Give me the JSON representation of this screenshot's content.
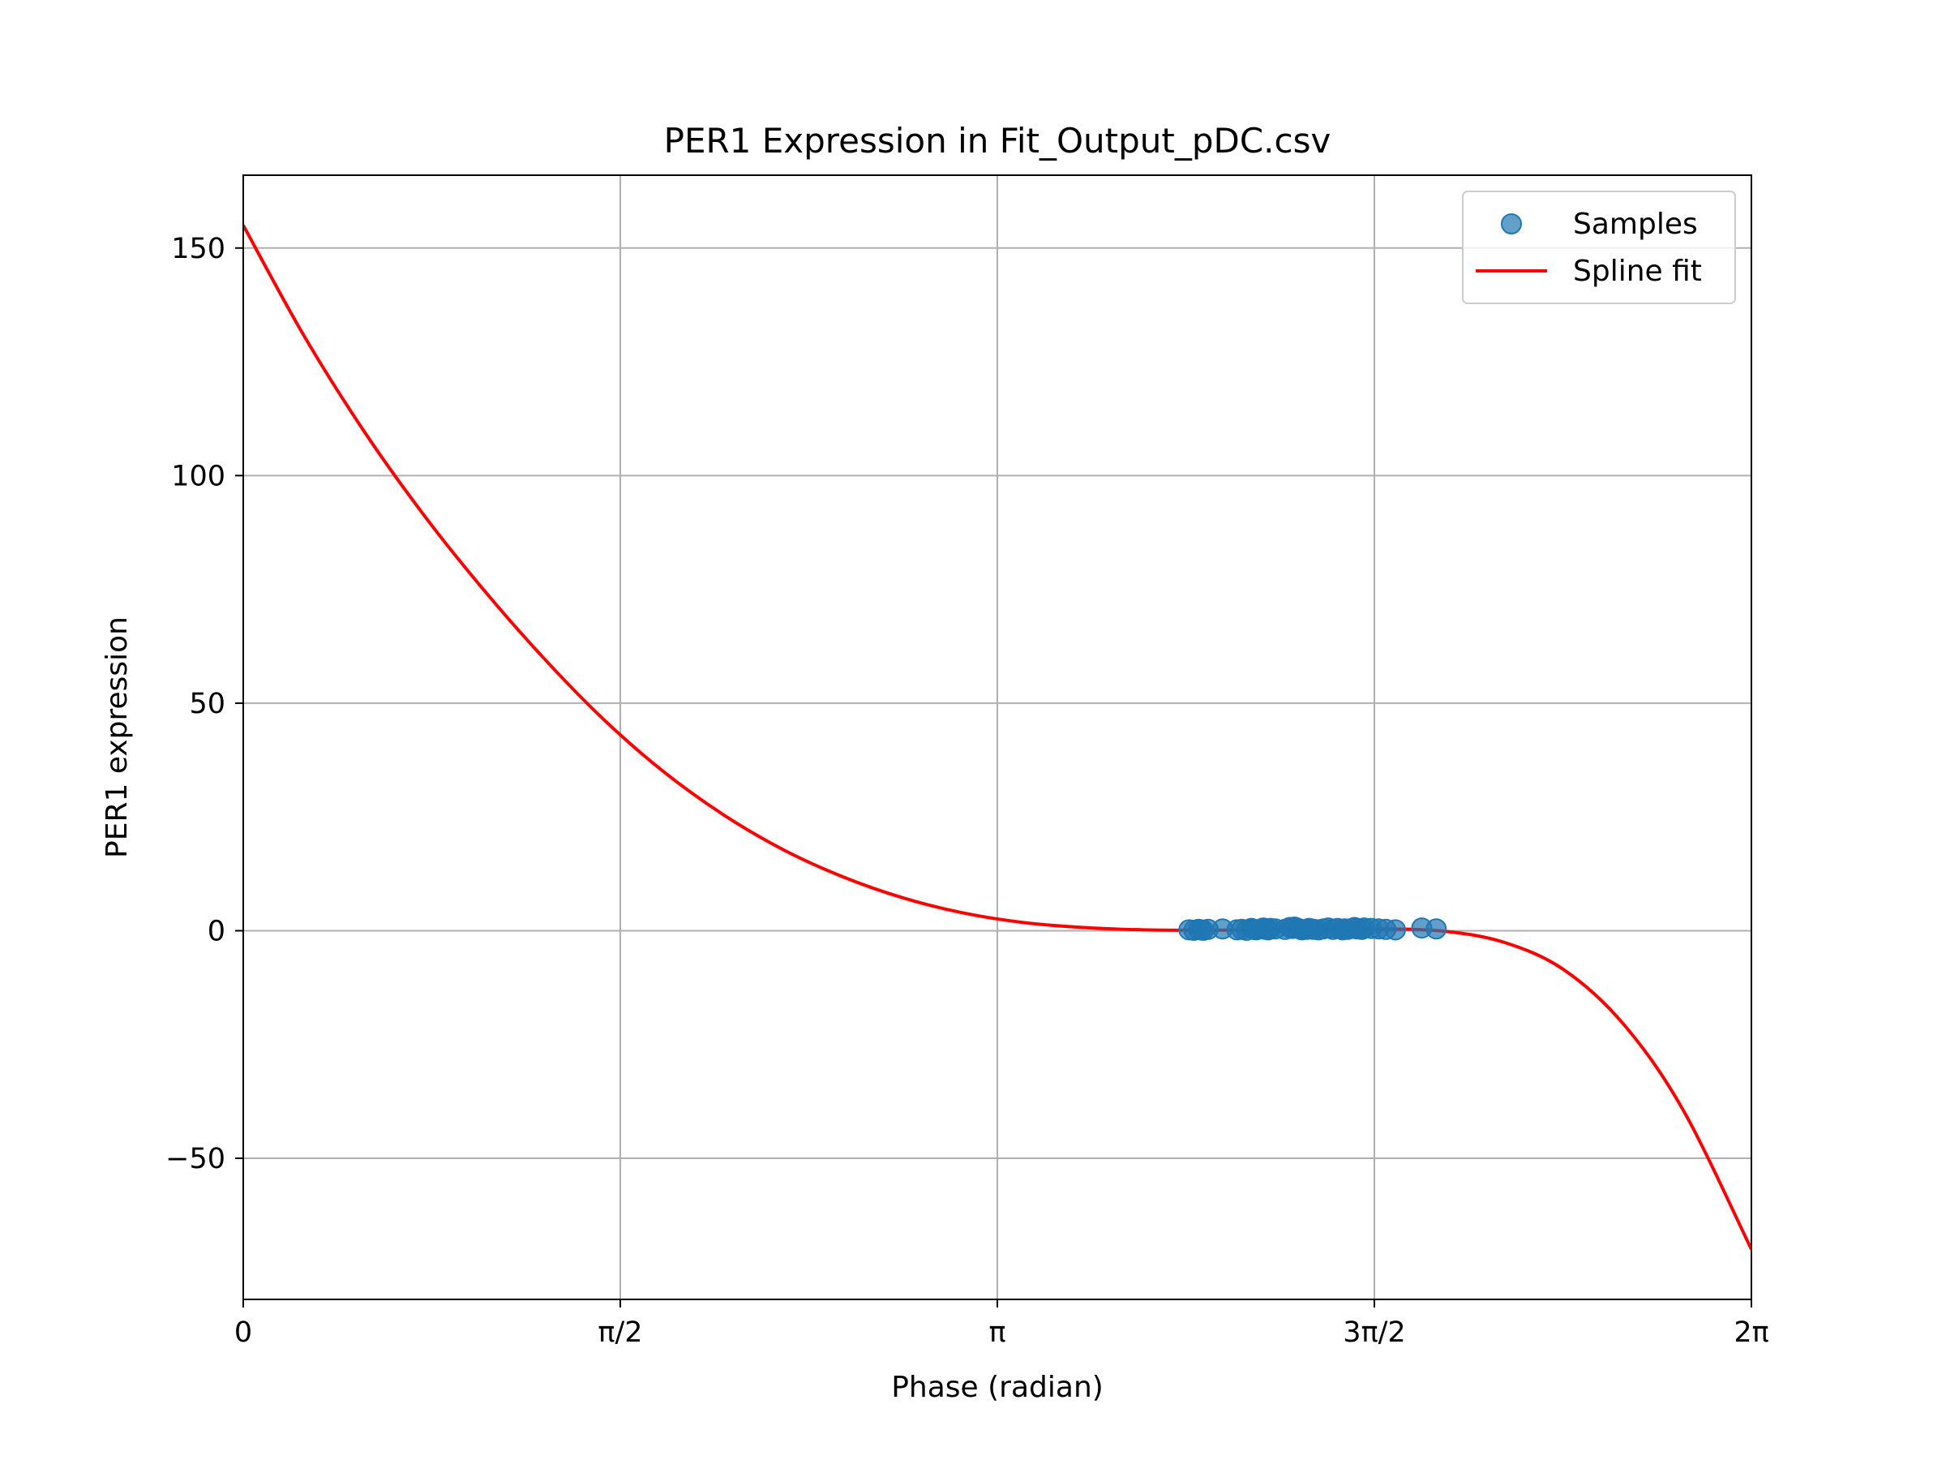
{
  "chart_data": {
    "type": "scatter",
    "title": "PER1 Expression in Fit_Output_pDC.csv",
    "xlabel": "Phase (radian)",
    "ylabel": "PER1 expression",
    "xlim": [
      0,
      6.2832
    ],
    "ylim": [
      -81,
      166
    ],
    "grid": true,
    "legend_position": "top-right",
    "x_ticks": [
      {
        "value": 0,
        "label": "0"
      },
      {
        "value": 1.5708,
        "label": "π/2"
      },
      {
        "value": 3.1416,
        "label": "π"
      },
      {
        "value": 4.7124,
        "label": "3π/2"
      },
      {
        "value": 6.2832,
        "label": "2π"
      }
    ],
    "y_ticks": [
      {
        "value": 150,
        "label": "150"
      },
      {
        "value": 100,
        "label": "100"
      },
      {
        "value": 50,
        "label": "50"
      },
      {
        "value": 0,
        "label": "0"
      },
      {
        "value": -50,
        "label": "−50"
      }
    ],
    "series": [
      {
        "name": "Samples",
        "kind": "scatter",
        "color": "#1f77b4",
        "x": [
          3.94,
          3.96,
          3.98,
          3.99,
          4.0,
          4.02,
          4.08,
          4.14,
          4.16,
          4.18,
          4.2,
          4.21,
          4.22,
          4.24,
          4.25,
          4.26,
          4.27,
          4.28,
          4.3,
          4.34,
          4.36,
          4.37,
          4.38,
          4.39,
          4.4,
          4.41,
          4.43,
          4.44,
          4.45,
          4.46,
          4.48,
          4.5,
          4.52,
          4.54,
          4.56,
          4.58,
          4.59,
          4.6,
          4.62,
          4.63,
          4.64,
          4.66,
          4.67,
          4.7,
          4.73,
          4.76,
          4.8,
          4.91,
          4.97
        ],
        "y": [
          0.2,
          0.1,
          0.3,
          0.2,
          0.1,
          0.3,
          0.4,
          0.2,
          0.3,
          0.1,
          0.5,
          0.3,
          0.2,
          0.4,
          0.6,
          0.3,
          0.2,
          0.5,
          0.4,
          0.3,
          0.7,
          0.5,
          0.8,
          0.6,
          0.4,
          0.2,
          0.3,
          0.5,
          0.4,
          0.3,
          0.2,
          0.4,
          0.6,
          0.3,
          0.5,
          0.2,
          0.4,
          0.3,
          0.5,
          0.7,
          0.4,
          0.3,
          0.6,
          0.5,
          0.4,
          0.3,
          0.2,
          0.6,
          0.4
        ]
      },
      {
        "name": "Spline fit",
        "kind": "line",
        "color": "#ff0000",
        "x": [
          0,
          0.25,
          0.5,
          0.75,
          1.0,
          1.25,
          1.5,
          1.75,
          2.0,
          2.25,
          2.5,
          2.75,
          3.0,
          3.25,
          3.5,
          3.75,
          4.0,
          4.25,
          4.5,
          4.75,
          5.0,
          5.25,
          5.5,
          5.75,
          6.0,
          6.2832
        ],
        "y": [
          155,
          131,
          110,
          91.5,
          75,
          60,
          46.5,
          35,
          25.5,
          17.8,
          11.8,
          7.2,
          3.9,
          1.8,
          0.7,
          0.2,
          0.1,
          0.2,
          0.3,
          0.4,
          -0.1,
          -2.5,
          -8.5,
          -20.5,
          -39.5,
          -70
        ]
      }
    ]
  }
}
